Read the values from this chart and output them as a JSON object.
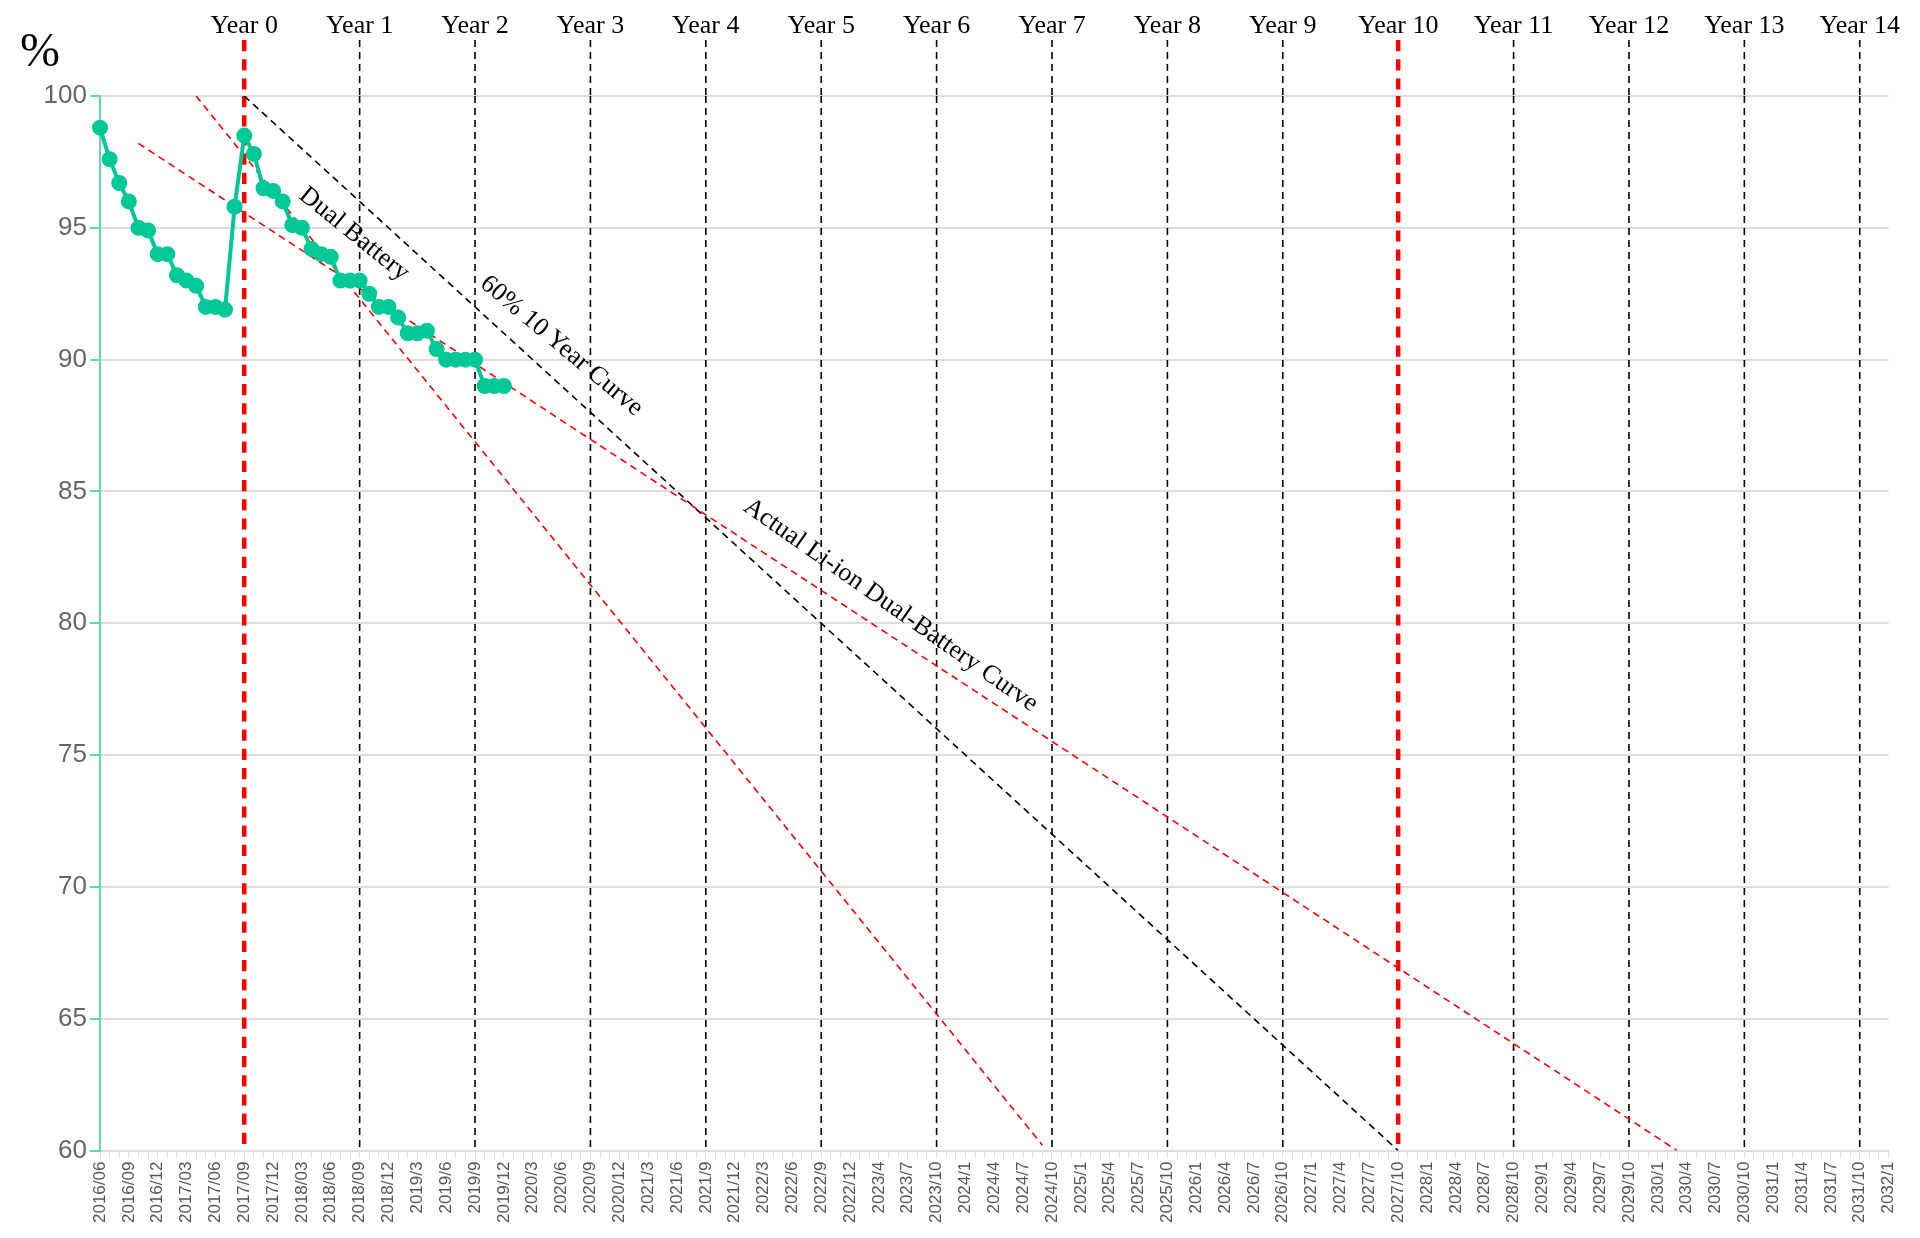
{
  "chart_data": {
    "type": "line",
    "ylabel": "%",
    "categories": [
      "2016/06",
      null,
      null,
      "2016/09",
      null,
      null,
      "2016/12",
      null,
      null,
      "2017/03",
      null,
      null,
      "2017/06",
      null,
      null,
      "2017/09",
      null,
      null,
      "2017/12",
      null,
      null,
      "2018/03",
      null,
      null,
      "2018/06",
      null,
      null,
      "2018/09",
      null,
      null,
      "2018/12",
      null,
      null,
      "2019/3",
      null,
      null,
      "2019/6",
      null,
      null,
      "2019/9",
      null,
      null,
      "2019/12",
      null,
      null,
      "2020/3",
      null,
      null,
      "2020/6",
      null,
      null,
      "2020/9",
      null,
      null,
      "2020/12",
      null,
      null,
      "2021/3",
      null,
      null,
      "2021/6",
      null,
      null,
      "2021/9",
      null,
      null,
      "2021/12",
      null,
      null,
      "2022/3",
      null,
      null,
      "2022/6",
      null,
      null,
      "2022/9",
      null,
      null,
      "2022/12",
      null,
      null,
      "2023/4",
      null,
      null,
      "2023/7",
      null,
      null,
      "2023/10",
      null,
      null,
      "2024/1",
      null,
      null,
      "2024/4",
      null,
      null,
      "2024/7",
      null,
      null,
      "2024/10",
      null,
      null,
      "2025/1",
      null,
      null,
      "2025/4",
      null,
      null,
      "2025/7",
      null,
      null,
      "2025/10",
      null,
      null,
      "2026/1",
      null,
      null,
      "2026/4",
      null,
      null,
      "2026/7",
      null,
      null,
      "2026/10",
      null,
      null,
      "2027/1",
      null,
      null,
      "2027/4",
      null,
      null,
      "2027/7",
      null,
      null,
      "2027/10",
      null,
      null,
      "2028/1",
      null,
      null,
      "2028/4",
      null,
      null,
      "2028/7",
      null,
      null,
      "2028/10",
      null,
      null,
      "2029/1",
      null,
      null,
      "2029/4",
      null,
      null,
      "2029/7",
      null,
      null,
      "2029/10",
      null,
      null,
      "2030/1",
      null,
      null,
      "2030/4",
      null,
      null,
      "2030/7",
      null,
      null,
      "2030/10",
      null,
      null,
      "2031/1",
      null,
      null,
      "2031/4",
      null,
      null,
      "2031/7",
      null,
      null,
      "2031/10",
      null,
      null,
      "2032/1"
    ],
    "series": [
      {
        "color": "#00c896",
        "marker": "circle",
        "values": [
          98.8,
          97.6,
          96.7,
          96.0,
          95.0,
          94.9,
          94.0,
          94.0,
          93.2,
          93.0,
          92.8,
          92.0,
          92.0,
          91.9,
          95.8,
          98.5,
          97.8,
          96.5,
          96.4,
          96.0,
          95.1,
          95.0,
          94.2,
          94.0,
          93.9,
          93.0,
          93.0,
          93.0,
          92.5,
          92.0,
          92.0,
          91.6,
          91.0,
          91.0,
          91.1,
          90.4,
          90.0,
          90.0,
          90.0,
          90.0,
          89.0,
          89.0,
          89.0,
          null,
          null,
          null,
          null,
          null,
          null,
          null,
          null,
          null,
          null,
          null,
          null,
          null,
          null,
          null,
          null,
          null,
          null,
          null,
          null,
          null,
          null,
          null,
          null,
          null,
          null,
          null,
          null,
          null,
          null,
          null,
          null,
          null,
          null,
          null,
          null,
          null,
          null,
          null,
          null,
          null,
          null,
          null,
          null,
          null,
          null,
          null,
          null,
          null,
          null,
          null,
          null,
          null,
          null,
          null,
          null,
          null,
          null,
          null,
          null,
          null,
          null,
          null,
          null,
          null,
          null,
          null,
          null,
          null,
          null,
          null,
          null,
          null,
          null,
          null,
          null,
          null,
          null,
          null,
          null,
          null,
          null,
          null,
          null,
          null,
          null,
          null,
          null,
          null,
          null,
          null,
          null,
          null,
          null,
          null,
          null,
          null,
          null,
          null,
          null,
          null,
          null,
          null,
          null,
          null,
          null,
          null,
          null,
          null,
          null,
          null,
          null,
          null,
          null,
          null,
          null,
          null,
          null,
          null,
          null,
          null,
          null,
          null,
          null,
          null,
          null,
          null,
          null,
          null,
          null,
          null,
          null,
          null,
          null,
          null,
          null,
          null,
          null,
          null,
          null,
          null,
          null,
          null,
          null
        ]
      },
      {
        "color": "#ff0000",
        "marker": "none",
        "line_style": "dashed",
        "values": [
          null,
          null,
          null,
          null,
          null,
          null,
          null,
          null,
          null,
          null,
          100,
          null,
          null,
          null,
          null,
          null,
          null,
          null,
          null,
          null,
          null,
          null,
          null,
          null,
          null,
          null,
          null,
          null,
          null,
          null,
          null,
          null,
          null,
          null,
          null,
          null,
          null,
          null,
          null,
          null,
          null,
          null,
          null,
          null,
          null,
          null,
          null,
          null,
          null,
          null,
          null,
          null,
          null,
          null,
          null,
          null,
          null,
          null,
          null,
          null,
          null,
          null,
          null,
          null,
          null,
          null,
          null,
          null,
          null,
          null,
          null,
          null,
          null,
          null,
          null,
          null,
          null,
          null,
          null,
          null,
          null,
          null,
          null,
          null,
          null,
          null,
          null,
          null,
          null,
          null,
          null,
          null,
          null,
          null,
          null,
          null,
          null,
          null,
          60.2,
          null,
          null,
          null,
          null,
          null,
          null,
          null,
          null,
          null,
          null,
          null,
          null,
          null,
          null,
          null,
          null,
          null,
          null,
          null,
          null,
          null,
          null,
          null,
          null,
          null,
          null,
          null,
          null,
          null,
          null,
          null,
          null,
          null,
          null,
          null,
          null,
          null,
          null,
          null,
          null,
          null,
          null,
          null,
          null,
          null,
          null,
          null,
          null,
          null,
          null,
          null,
          null,
          null,
          null,
          null,
          null,
          null,
          null,
          null,
          null,
          null,
          null,
          null,
          null,
          null,
          null,
          null,
          null,
          null,
          null,
          null,
          null,
          null,
          null,
          null,
          null,
          null,
          null,
          null,
          null,
          null,
          null,
          null,
          null,
          null,
          null,
          null,
          null
        ]
      },
      {
        "color": "#ff0000",
        "marker": "none",
        "line_style": "dashed",
        "values": [
          null,
          null,
          null,
          null,
          98.2,
          null,
          null,
          null,
          null,
          null,
          null,
          null,
          null,
          null,
          null,
          null,
          null,
          null,
          null,
          null,
          null,
          null,
          null,
          null,
          null,
          null,
          null,
          null,
          null,
          null,
          null,
          null,
          null,
          null,
          null,
          null,
          null,
          null,
          null,
          null,
          null,
          null,
          null,
          null,
          null,
          null,
          null,
          null,
          null,
          null,
          null,
          null,
          null,
          null,
          null,
          null,
          null,
          null,
          null,
          null,
          null,
          null,
          null,
          null,
          null,
          null,
          null,
          null,
          null,
          null,
          null,
          null,
          null,
          null,
          null,
          null,
          null,
          null,
          null,
          null,
          null,
          null,
          null,
          null,
          null,
          null,
          null,
          null,
          null,
          null,
          null,
          null,
          null,
          null,
          null,
          null,
          null,
          null,
          null,
          null,
          null,
          null,
          null,
          null,
          null,
          null,
          null,
          null,
          null,
          null,
          null,
          null,
          null,
          null,
          null,
          null,
          null,
          null,
          null,
          null,
          null,
          null,
          null,
          null,
          null,
          null,
          null,
          null,
          null,
          null,
          null,
          null,
          null,
          null,
          null,
          null,
          null,
          null,
          null,
          null,
          null,
          null,
          null,
          null,
          null,
          null,
          null,
          null,
          null,
          null,
          null,
          null,
          null,
          null,
          null,
          null,
          null,
          null,
          null,
          null,
          null,
          null,
          null,
          null,
          60,
          null,
          null,
          null,
          null,
          null,
          null,
          null,
          null,
          null,
          null,
          null,
          null,
          null,
          null,
          null,
          null,
          null,
          null,
          null,
          null,
          null,
          null
        ]
      },
      {
        "color": "#000000",
        "marker": "none",
        "line_style": "dashed",
        "values": [
          null,
          null,
          null,
          null,
          null,
          null,
          null,
          null,
          null,
          null,
          null,
          null,
          null,
          null,
          null,
          100,
          null,
          null,
          null,
          null,
          null,
          null,
          null,
          null,
          null,
          null,
          null,
          null,
          null,
          null,
          null,
          null,
          null,
          null,
          null,
          null,
          null,
          null,
          null,
          null,
          null,
          null,
          null,
          null,
          null,
          null,
          null,
          null,
          null,
          null,
          null,
          null,
          null,
          null,
          null,
          null,
          null,
          null,
          null,
          null,
          null,
          null,
          null,
          null,
          null,
          null,
          null,
          null,
          null,
          null,
          null,
          null,
          null,
          null,
          null,
          null,
          null,
          null,
          null,
          null,
          null,
          null,
          null,
          null,
          null,
          null,
          null,
          null,
          null,
          null,
          null,
          null,
          null,
          null,
          null,
          null,
          null,
          null,
          null,
          null,
          null,
          null,
          null,
          null,
          null,
          null,
          null,
          null,
          null,
          null,
          null,
          null,
          null,
          null,
          null,
          null,
          null,
          null,
          null,
          null,
          null,
          null,
          null,
          null,
          null,
          null,
          null,
          null,
          null,
          null,
          null,
          null,
          null,
          null,
          null,
          60,
          null,
          null,
          null,
          null,
          null,
          null,
          null,
          null,
          null,
          null,
          null,
          null,
          null,
          null,
          null,
          null,
          null,
          null,
          null,
          null,
          null,
          null,
          null,
          null,
          null,
          null,
          null,
          null,
          null,
          null,
          null,
          null,
          null,
          null,
          null,
          null,
          null,
          null,
          null,
          null,
          null,
          null,
          null,
          null,
          null,
          null,
          null,
          null,
          null,
          null,
          null
        ]
      }
    ],
    "ylim": [
      60,
      100
    ],
    "yticks": [
      60,
      65,
      70,
      75,
      80,
      85,
      90,
      95,
      100
    ],
    "grid": "y",
    "legend": false,
    "ref_lines": [
      {
        "axis": "x",
        "value": "2017/09",
        "label": "Year 0",
        "color": "#ff0000",
        "line_style": "dashed"
      },
      {
        "axis": "x",
        "value": "2018/09",
        "label": "Year 1",
        "line_style": "dashed"
      },
      {
        "axis": "x",
        "value": "2019/9",
        "label": "Year 2",
        "line_style": "dashed"
      },
      {
        "axis": "x",
        "value": "2020/9",
        "label": "Year 3",
        "line_style": "dashed"
      },
      {
        "axis": "x",
        "value": "2021/9",
        "label": "Year 4",
        "line_style": "dashed"
      },
      {
        "axis": "x",
        "value": "2022/9",
        "label": "Year 5",
        "line_style": "dashed"
      },
      {
        "axis": "x",
        "value": "2023/10",
        "label": "Year 6",
        "line_style": "dashed"
      },
      {
        "axis": "x",
        "value": "2024/10",
        "label": "Year 7",
        "line_style": "dashed"
      },
      {
        "axis": "x",
        "value": "2025/10",
        "label": "Year 8",
        "line_style": "dashed"
      },
      {
        "axis": "x",
        "value": "2026/10",
        "label": "Year 9",
        "line_style": "dashed"
      },
      {
        "axis": "x",
        "value": "2027/10",
        "label": "Year 10",
        "color": "#ff0000",
        "line_style": "dashed"
      },
      {
        "axis": "x",
        "value": "2028/10",
        "label": "Year 11",
        "line_style": "dashed"
      },
      {
        "axis": "x",
        "value": "2029/10",
        "label": "Year 12",
        "line_style": "dashed"
      },
      {
        "axis": "x",
        "value": "2030/10",
        "label": "Year 13",
        "line_style": "dashed"
      },
      {
        "axis": "x",
        "value": "2031/10",
        "label": "Year 14",
        "line_style": "dashed"
      }
    ],
    "annotations": [
      "Dual Battery",
      "60% 10 Year Curve",
      "Actual Li-ion Dual-Battery Curve"
    ]
  }
}
